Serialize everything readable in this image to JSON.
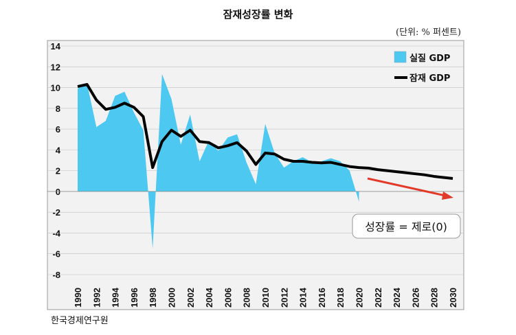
{
  "header": {
    "title": "잠재성장률 변화",
    "unit": "(단위: % 퍼센트)"
  },
  "footer": {
    "source": "한국경제연구원"
  },
  "callout": {
    "text": "성장률 = 제로(0)"
  },
  "colors": {
    "area_fill": "#4dc8f0",
    "line": "#000000",
    "arrow": "#e23a2a",
    "plot_bg": "#f2f2f2",
    "grid": "#bfbfbf"
  },
  "chart_data": {
    "type": "line",
    "title": "잠재성장률 변화",
    "y_ticks": [
      "14",
      "12",
      "10",
      "8",
      "6",
      "4",
      "2",
      "0",
      "-2",
      "-4",
      "-6",
      "-8"
    ],
    "x_ticks": [
      "1990",
      "1992",
      "1994",
      "1996",
      "1998",
      "2000",
      "2002",
      "2004",
      "2006",
      "2008",
      "2010",
      "2012",
      "2014",
      "2016",
      "2018",
      "2020",
      "2022",
      "2024",
      "2026",
      "2028",
      "2030"
    ],
    "ylim": [
      -8,
      14
    ],
    "xlim": [
      1990,
      2030
    ],
    "grid": true,
    "legend_position": "top-right",
    "series": [
      {
        "name": "실질 GDP",
        "style": "area",
        "x": [
          1990,
          1991,
          1992,
          1993,
          1994,
          1995,
          1996,
          1997,
          1998,
          1999,
          2000,
          2001,
          2002,
          2003,
          2004,
          2005,
          2006,
          2007,
          2008,
          2009,
          2010,
          2011,
          2012,
          2013,
          2014,
          2015,
          2016,
          2017,
          2018,
          2019,
          2020
        ],
        "values": [
          9.9,
          10.4,
          6.2,
          6.8,
          9.2,
          9.6,
          7.6,
          5.9,
          -5.5,
          11.3,
          8.9,
          4.5,
          7.4,
          2.9,
          4.9,
          3.9,
          5.2,
          5.5,
          2.8,
          0.7,
          6.5,
          3.7,
          2.3,
          2.9,
          3.3,
          2.8,
          2.9,
          3.2,
          2.9,
          2.0,
          -1.0
        ]
      },
      {
        "name": "잠재 GDP",
        "style": "line",
        "x": [
          1990,
          1991,
          1992,
          1993,
          1994,
          1995,
          1996,
          1997,
          1998,
          1999,
          2000,
          2001,
          2002,
          2003,
          2004,
          2005,
          2006,
          2007,
          2008,
          2009,
          2010,
          2011,
          2012,
          2013,
          2014,
          2015,
          2016,
          2017,
          2018,
          2019,
          2020,
          2021,
          2022,
          2023,
          2024,
          2025,
          2026,
          2027,
          2028,
          2029,
          2030
        ],
        "values": [
          10.1,
          10.3,
          8.8,
          7.9,
          8.1,
          8.5,
          8.1,
          7.2,
          2.3,
          4.8,
          5.9,
          5.3,
          5.9,
          4.8,
          4.7,
          4.2,
          4.4,
          4.7,
          3.9,
          2.6,
          3.7,
          3.6,
          3.1,
          2.9,
          2.9,
          2.8,
          2.75,
          2.8,
          2.6,
          2.4,
          2.3,
          2.25,
          2.1,
          2.0,
          1.9,
          1.8,
          1.7,
          1.6,
          1.45,
          1.35,
          1.25
        ]
      }
    ]
  }
}
